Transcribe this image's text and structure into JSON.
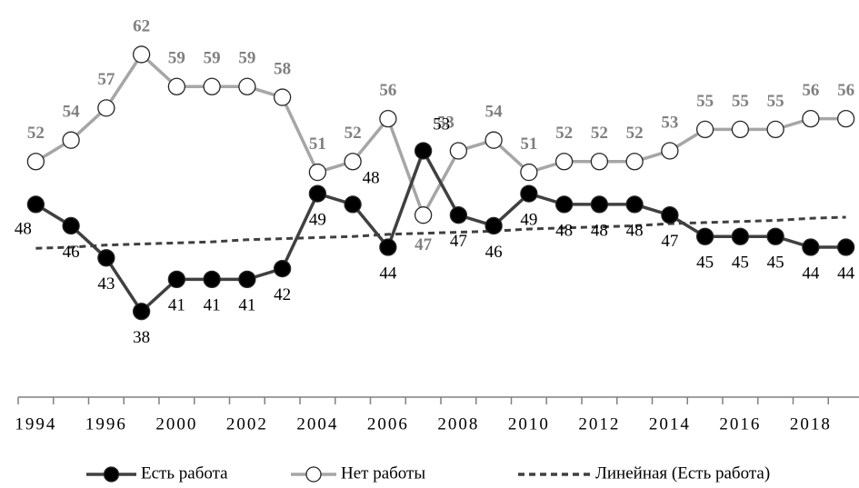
{
  "chart_data": {
    "type": "line",
    "categories": [
      "1994",
      null,
      "1996",
      null,
      "2000",
      null,
      "2002",
      null,
      "2004",
      null,
      "2006",
      null,
      "2008",
      null,
      "2010",
      null,
      "2012",
      null,
      "2014",
      null,
      "2016",
      null,
      "2018",
      null
    ],
    "series": [
      {
        "name": "Есть работа",
        "color": "#404040",
        "marker": "filled",
        "labels": true,
        "values": [
          48,
          46,
          43,
          38,
          41,
          41,
          41,
          42,
          49,
          48,
          44,
          53,
          47,
          46,
          49,
          48,
          48,
          48,
          47,
          45,
          45,
          45,
          44,
          44
        ]
      },
      {
        "name": "Нет работы",
        "color": "#a6a6a6",
        "marker": "open",
        "labels": true,
        "values": [
          52,
          54,
          57,
          62,
          59,
          59,
          59,
          58,
          51,
          52,
          56,
          47,
          53,
          54,
          51,
          52,
          52,
          52,
          53,
          55,
          55,
          55,
          56,
          56
        ]
      },
      {
        "name": "Линейная (Есть работа)",
        "color": "#404040",
        "dashed": true,
        "values": [
          43.9,
          44.0,
          44.2,
          44.3,
          44.4,
          44.5,
          44.7,
          44.8,
          44.9,
          45.0,
          45.2,
          45.3,
          45.4,
          45.5,
          45.7,
          45.8,
          45.9,
          46.0,
          46.2,
          46.3,
          46.4,
          46.5,
          46.7,
          46.8
        ]
      }
    ],
    "ylim": [
      30,
      67
    ]
  }
}
